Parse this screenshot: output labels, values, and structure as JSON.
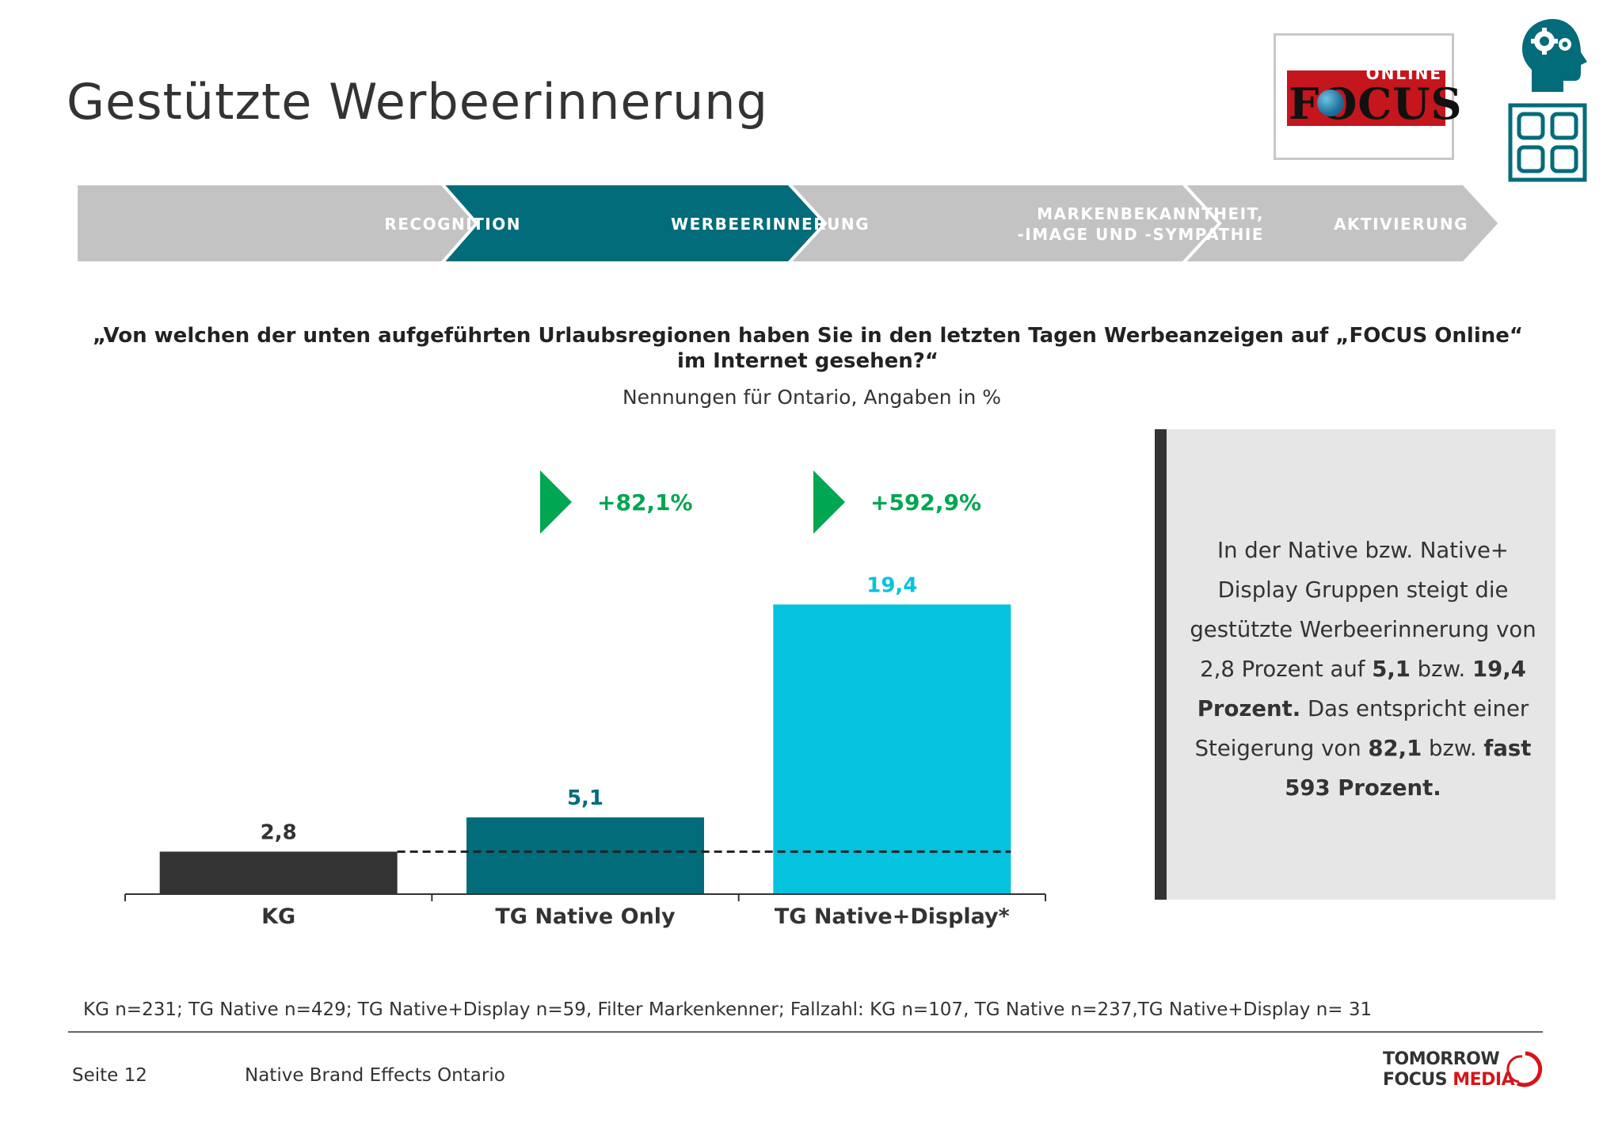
{
  "title": "Gestützte Werbeerinnerung",
  "logo": {
    "online": "ONLINE",
    "focus": "FOCUS"
  },
  "process_steps": [
    {
      "label_line1": "RECOGNITION",
      "label_line2": "",
      "active": false
    },
    {
      "label_line1": "WERBEERINNERUNG",
      "label_line2": "",
      "active": true
    },
    {
      "label_line1": "MARKENBEKANNTHEIT,",
      "label_line2": "-IMAGE UND -SYMPATHIE",
      "active": false
    },
    {
      "label_line1": "AKTIVIERUNG",
      "label_line2": "",
      "active": false
    }
  ],
  "question_line1": "„Von welchen der unten aufgeführten Urlaubsregionen haben Sie in den letzten Tagen Werbeanzeigen auf „FOCUS Online“",
  "question_line2": "im Internet gesehen?“",
  "subtitle": "Nennungen für Ontario, Angaben in %",
  "chart_data": {
    "type": "bar",
    "categories": [
      "KG",
      "TG Native Only",
      "TG Native+Display*"
    ],
    "values": [
      2.8,
      5.1,
      19.4
    ],
    "value_labels": [
      "2,8",
      "5,1",
      "19,4"
    ],
    "bar_colors": [
      "#333333",
      "#036c7a",
      "#05c3df"
    ],
    "label_colors": [
      "#333333",
      "#036c7a",
      "#05c3df"
    ],
    "reference_line": 2.8,
    "uplifts": [
      "+82,1%",
      "+592,9%"
    ],
    "ylim": [
      0,
      20
    ],
    "grid": false,
    "legend": "none"
  },
  "info_box": {
    "line1": "In der Native bzw. Native+",
    "line2": "Display Gruppen steigt die",
    "line3": "gestützte Werbeerinnerung von",
    "line4_a": "2,8 Prozent auf ",
    "line4_b": "5,1",
    "line4_c": " bzw. ",
    "line4_d": "19,4",
    "line5_a": "Prozent.",
    "line5_b": " Das entspricht einer",
    "line6_a": "Steigerung von ",
    "line6_b": "82,1",
    "line6_c": " bzw. ",
    "line6_d": "fast",
    "line7": "593 Prozent."
  },
  "footnote": "KG n=231; TG Native n=429; TG Native+Display n=59, Filter Markenkenner; Fallzahl: KG n=107, TG Native n=237,TG Native+Display n= 31",
  "page_number": "Seite 12",
  "doc_title": "Native Brand Effects Ontario",
  "brand": {
    "line1": "TOMORROW",
    "line2_a": "FOCUS ",
    "line2_b": "MEDIA"
  },
  "colors": {
    "teal": "#036c7a",
    "cyan": "#05c3df",
    "grey": "#c3c3c3",
    "green": "#00a651",
    "dark": "#333333",
    "red": "#d7141a"
  }
}
